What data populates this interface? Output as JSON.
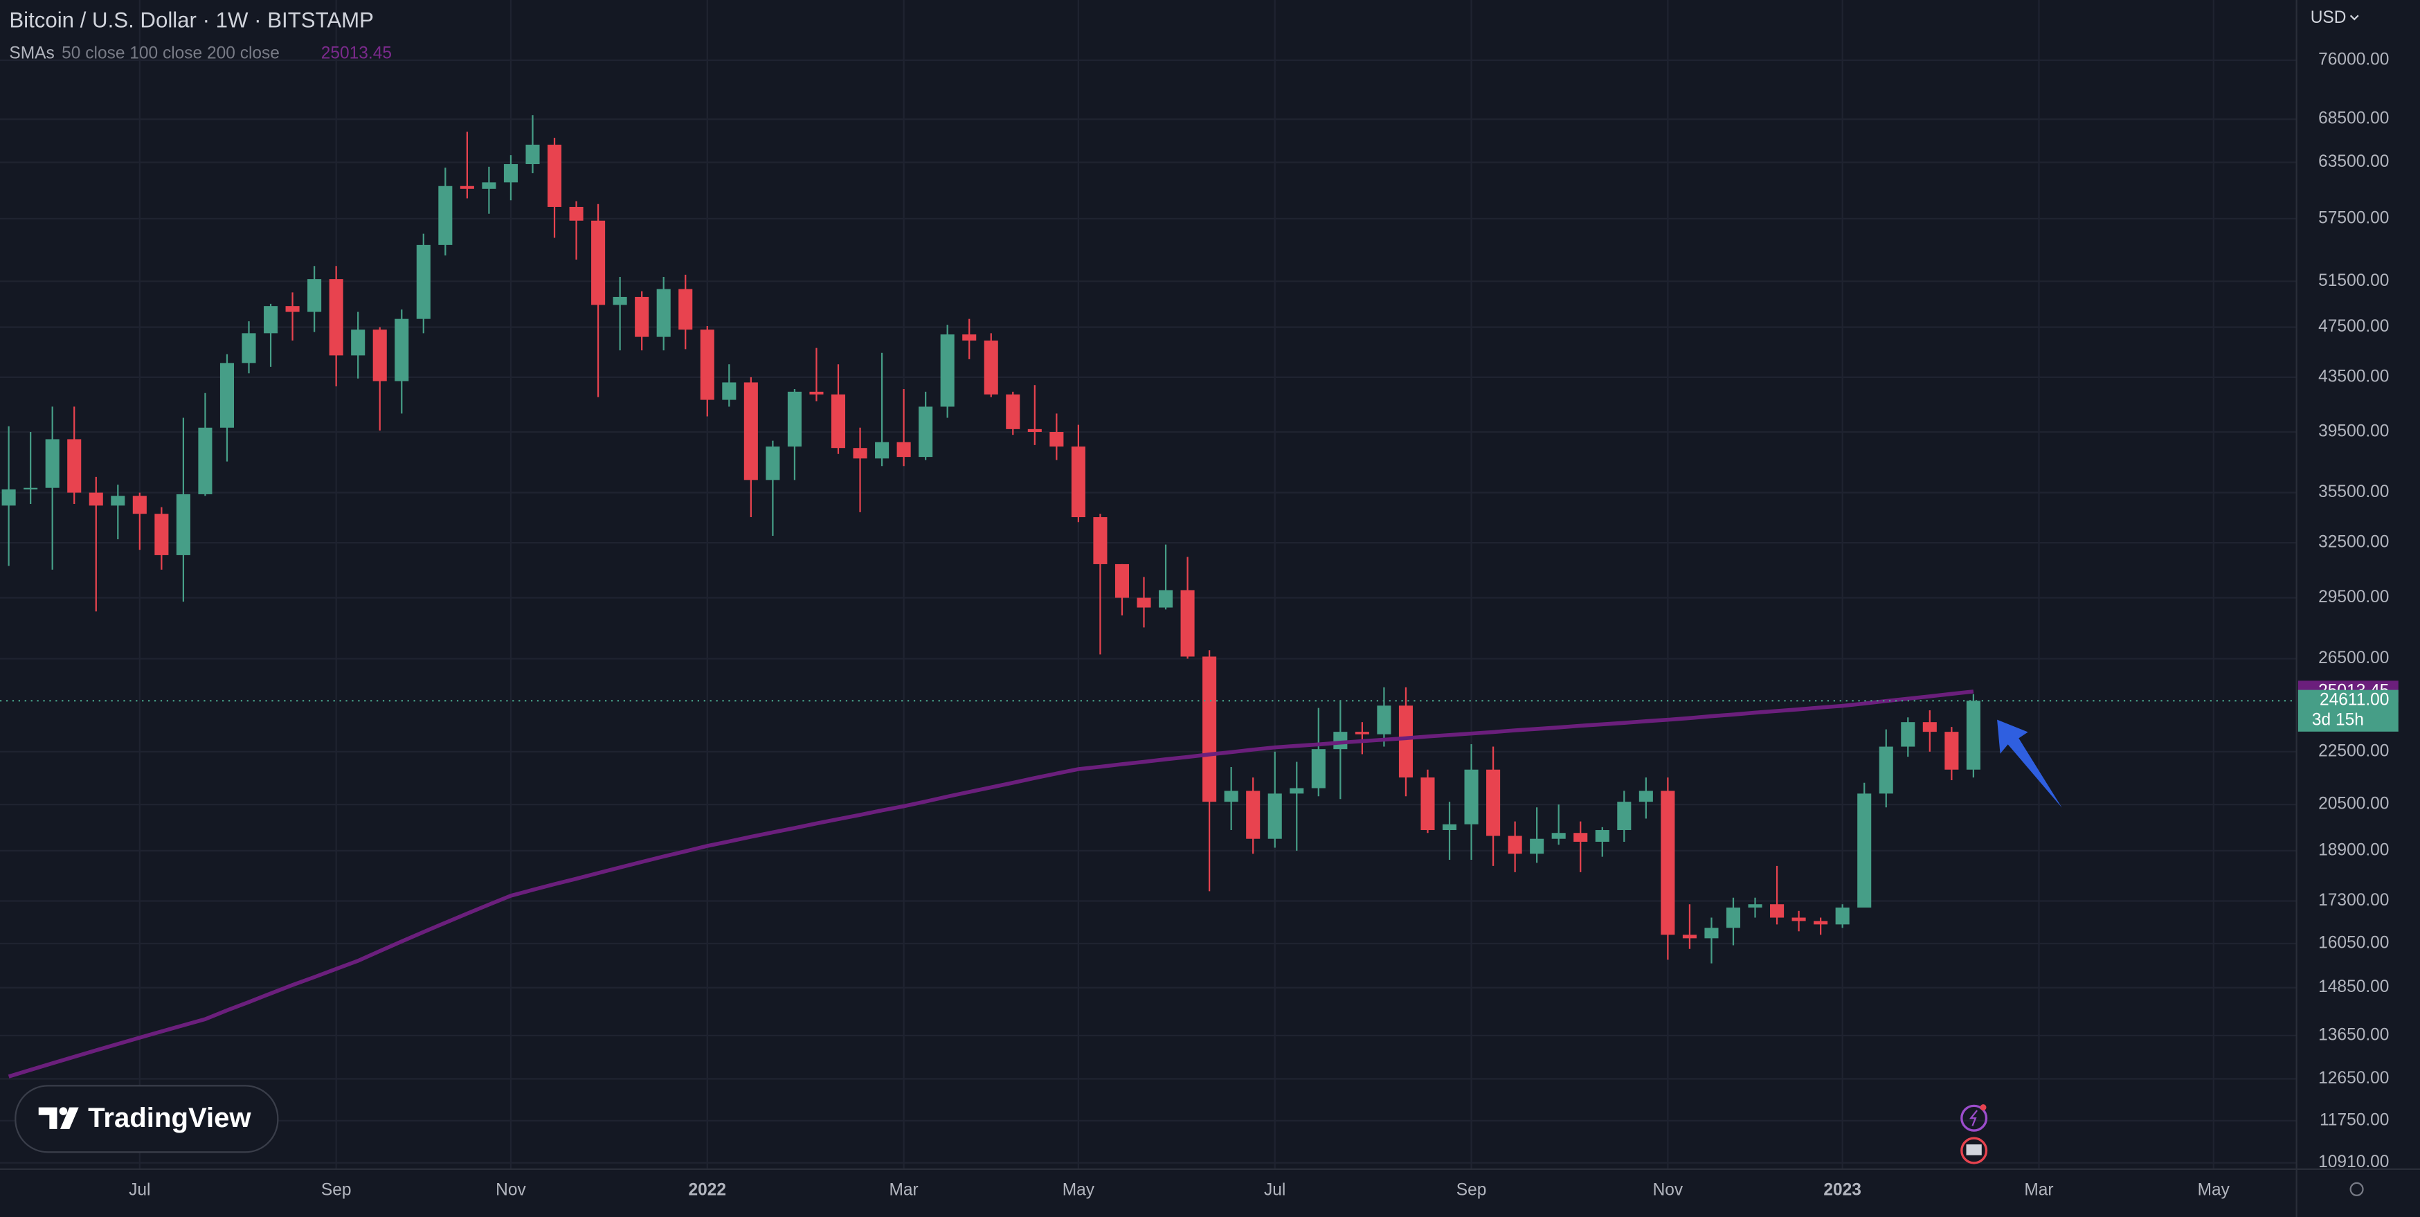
{
  "chart_data": {
    "type": "candlestick",
    "title": "Bitcoin / U.S. Dollar · 1W · BITSTAMP",
    "indicator": "SMAs",
    "indicator_params": "50 close 100 close 200 close",
    "currency": "USD",
    "brand": "TradingView",
    "log_scale": true,
    "grid": true,
    "up_color": "#469e87",
    "down_color": "#e8434f",
    "open": [
      34700,
      35700,
      35800,
      39000,
      35500,
      34700,
      35300,
      34200,
      31800,
      35400,
      39800,
      44600,
      47000,
      49300,
      48800,
      51700,
      45200,
      47300,
      43200,
      48200,
      54900,
      60900,
      60600,
      61300,
      63300,
      65500,
      58700,
      57300,
      49400,
      50100,
      46700,
      50800,
      47300,
      41800,
      43100,
      36300,
      38500,
      42400,
      42200,
      38400,
      37700,
      38800,
      37800,
      41300,
      46900,
      46400,
      42200,
      39700,
      39500,
      38500,
      34000,
      31300,
      29500,
      29000,
      29900,
      26600,
      20600,
      21000,
      19300,
      20900,
      21100,
      22600,
      23300,
      23200,
      24400,
      21500,
      19600,
      19800,
      21800,
      19400,
      18800,
      19300,
      19500,
      19200,
      19600,
      20600,
      21000,
      16300,
      16200,
      16500,
      17100,
      17200,
      16800,
      16700,
      16600,
      17100,
      20900,
      22700,
      23700,
      23300,
      21800
    ],
    "high": [
      39900,
      39500,
      41300,
      41300,
      36500,
      36000,
      35500,
      34600,
      40500,
      42300,
      45300,
      48000,
      49500,
      50500,
      52900,
      52900,
      48800,
      47500,
      49000,
      56000,
      62900,
      67000,
      63000,
      64300,
      69000,
      66300,
      59300,
      59000,
      51900,
      50600,
      51900,
      52100,
      47600,
      44500,
      43500,
      38900,
      42600,
      45800,
      44500,
      39800,
      45400,
      42600,
      42400,
      47700,
      48200,
      47000,
      42400,
      42900,
      40800,
      40000,
      34200,
      31300,
      30600,
      32400,
      31700,
      26900,
      21900,
      21500,
      22500,
      22100,
      24300,
      24600,
      23700,
      25200,
      25200,
      21800,
      20600,
      22800,
      22700,
      19900,
      20400,
      20500,
      19900,
      19700,
      21000,
      21500,
      21500,
      17200,
      16800,
      17400,
      17400,
      18400,
      17000,
      16800,
      17200,
      21300,
      23400,
      23900,
      24200,
      23500,
      24900
    ],
    "low": [
      31200,
      34800,
      31000,
      34800,
      28800,
      32700,
      32100,
      31000,
      29300,
      35300,
      37500,
      43800,
      44300,
      46400,
      47100,
      42800,
      43400,
      39600,
      40800,
      47000,
      53900,
      59600,
      58000,
      59400,
      62300,
      55600,
      53500,
      42000,
      45600,
      45600,
      45600,
      45700,
      40600,
      41300,
      34000,
      32900,
      36300,
      41700,
      38000,
      34300,
      37200,
      37200,
      37600,
      40500,
      44900,
      42000,
      39300,
      38600,
      37600,
      33700,
      26700,
      28600,
      28000,
      28900,
      26500,
      17600,
      19600,
      18800,
      19000,
      18900,
      20800,
      20700,
      22400,
      22700,
      20800,
      19500,
      18600,
      18600,
      18400,
      18200,
      18500,
      19100,
      18200,
      18700,
      19200,
      20000,
      15600,
      15900,
      15500,
      16000,
      16800,
      16600,
      16400,
      16300,
      16500,
      17100,
      20400,
      22300,
      22500,
      21400,
      21500
    ],
    "close": [
      35700,
      35800,
      39000,
      35500,
      34700,
      35300,
      34200,
      31800,
      35400,
      39800,
      44600,
      47000,
      49300,
      48800,
      51700,
      45200,
      47300,
      43200,
      48200,
      54900,
      60900,
      60600,
      61300,
      63300,
      65500,
      58700,
      57300,
      49400,
      50100,
      46700,
      50800,
      47300,
      41800,
      43100,
      36300,
      38500,
      42400,
      42200,
      38400,
      37700,
      38800,
      37800,
      41300,
      46900,
      46400,
      42200,
      39700,
      39500,
      38500,
      34000,
      31300,
      29500,
      29000,
      29900,
      26600,
      20600,
      21000,
      19300,
      20900,
      21100,
      22600,
      23300,
      23200,
      24400,
      21500,
      19600,
      19800,
      21800,
      19400,
      18800,
      19300,
      19500,
      19200,
      19600,
      20600,
      21000,
      16300,
      16200,
      16500,
      17100,
      17200,
      16800,
      16700,
      16600,
      17100,
      20900,
      22700,
      23700,
      23300,
      21800,
      24611
    ],
    "sma": {
      "color": "#6b1f7c",
      "values": [
        12700,
        12850,
        13000,
        13150,
        13300,
        13450,
        13600,
        13750,
        13900,
        14050,
        14270,
        14480,
        14700,
        14920,
        15130,
        15350,
        15570,
        15840,
        16110,
        16380,
        16650,
        16920,
        17190,
        17460,
        17640,
        17820,
        17990,
        18170,
        18350,
        18530,
        18710,
        18880,
        19060,
        19210,
        19370,
        19520,
        19670,
        19830,
        19980,
        20130,
        20290,
        20440,
        20610,
        20790,
        20960,
        21130,
        21300,
        21480,
        21650,
        21820,
        21910,
        22010,
        22100,
        22200,
        22290,
        22390,
        22480,
        22580,
        22670,
        22730,
        22790,
        22860,
        22920,
        22980,
        23040,
        23110,
        23170,
        23230,
        23290,
        23360,
        23420,
        23480,
        23550,
        23610,
        23670,
        23740,
        23800,
        23870,
        23950,
        24020,
        24100,
        24170,
        24240,
        24320,
        24390,
        24490,
        24600,
        24700,
        24800,
        24910,
        25013.45
      ]
    },
    "price_tag": {
      "value": 24611,
      "label": "24611.00",
      "countdown": "3d 15h"
    },
    "xlim": [
      -0.4,
      104.8
    ],
    "xticks": [
      {
        "value": 6,
        "label": "Jul"
      },
      {
        "value": 15,
        "label": "Sep"
      },
      {
        "value": 23,
        "label": "Nov"
      },
      {
        "value": 32,
        "label": "2022"
      },
      {
        "value": 41,
        "label": "Mar"
      },
      {
        "value": 49,
        "label": "May"
      },
      {
        "value": 58,
        "label": "Jul"
      },
      {
        "value": 67,
        "label": "Sep"
      },
      {
        "value": 76,
        "label": "Nov"
      },
      {
        "value": 84,
        "label": "2023"
      },
      {
        "value": 93,
        "label": "Mar"
      },
      {
        "value": 101,
        "label": "May"
      }
    ],
    "ylim": [
      10790,
      84500
    ],
    "yticks": [
      {
        "value": 76000,
        "label": "76000.00"
      },
      {
        "value": 68500,
        "label": "68500.00"
      },
      {
        "value": 63500,
        "label": "63500.00"
      },
      {
        "value": 57500,
        "label": "57500.00"
      },
      {
        "value": 51500,
        "label": "51500.00"
      },
      {
        "value": 47500,
        "label": "47500.00"
      },
      {
        "value": 43500,
        "label": "43500.00"
      },
      {
        "value": 39500,
        "label": "39500.00"
      },
      {
        "value": 35500,
        "label": "35500.00"
      },
      {
        "value": 32500,
        "label": "32500.00"
      },
      {
        "value": 29500,
        "label": "29500.00"
      },
      {
        "value": 26500,
        "label": "26500.00"
      },
      {
        "value": 22500,
        "label": "22500.00"
      },
      {
        "value": 20500,
        "label": "20500.00"
      },
      {
        "value": 18900,
        "label": "18900.00"
      },
      {
        "value": 17300,
        "label": "17300.00"
      },
      {
        "value": 16050,
        "label": "16050.00"
      },
      {
        "value": 14850,
        "label": "14850.00"
      },
      {
        "value": 13650,
        "label": "13650.00"
      },
      {
        "value": 12650,
        "label": "12650.00"
      },
      {
        "value": 11750,
        "label": "11750.00"
      },
      {
        "value": 10910,
        "label": "10910.00"
      }
    ]
  }
}
